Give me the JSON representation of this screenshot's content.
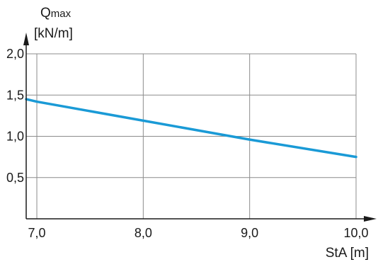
{
  "chart_data": {
    "type": "line",
    "ylabel_main": "Q",
    "ylabel_sub": "max",
    "ylabel_unit": "[kN/m]",
    "xlabel": "StA [m]",
    "xlim": [
      6.9,
      10.0
    ],
    "ylim": [
      0,
      2.0
    ],
    "x_ticks": [
      7.0,
      8.0,
      9.0,
      10.0
    ],
    "x_tick_labels": [
      "7,0",
      "8,0",
      "9,0",
      "10,0"
    ],
    "y_ticks": [
      0.5,
      1.0,
      1.5,
      2.0
    ],
    "y_tick_labels": [
      "0,5",
      "1,0",
      "1,5",
      "2,0"
    ],
    "grid": true,
    "series": [
      {
        "color": "#1a9ad6",
        "x": [
          6.9,
          7.0,
          8.0,
          9.0,
          10.0
        ],
        "y": [
          1.45,
          1.42,
          1.19,
          0.96,
          0.75
        ]
      }
    ],
    "colors": {
      "axis": "#1a1a1a",
      "grid": "#8c8c8c",
      "line": "#1a9ad6"
    }
  }
}
